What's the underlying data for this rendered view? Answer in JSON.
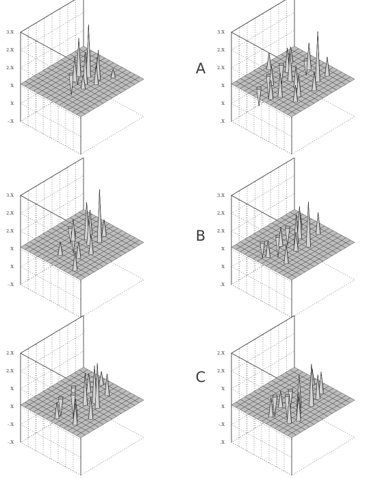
{
  "figure": {
    "rows": [
      {
        "label": "A"
      },
      {
        "label": "B"
      },
      {
        "label": "C"
      }
    ]
  },
  "chart_data": [
    {
      "type": "surface3d",
      "row": "A",
      "column": "left",
      "ztick_labels": [
        "-.X",
        "X",
        "X",
        "2.X",
        "2.X",
        "3.X"
      ],
      "grid": true,
      "peaks": [
        {
          "x": 0.62,
          "y": 0.52,
          "z": 1.0
        },
        {
          "x": 0.5,
          "y": 0.45,
          "z": 0.6
        },
        {
          "x": 0.56,
          "y": 0.62,
          "z": 0.72
        },
        {
          "x": 0.46,
          "y": 0.58,
          "z": 0.45
        },
        {
          "x": 0.66,
          "y": 0.4,
          "z": 0.55
        },
        {
          "x": 0.7,
          "y": 0.62,
          "z": 0.4
        },
        {
          "x": 0.58,
          "y": 0.35,
          "z": 0.35
        },
        {
          "x": 0.42,
          "y": 0.4,
          "z": 0.25
        },
        {
          "x": 0.74,
          "y": 0.5,
          "z": 0.3
        },
        {
          "x": 0.52,
          "y": 0.7,
          "z": -0.4
        },
        {
          "x": 0.64,
          "y": 0.72,
          "z": -0.3
        },
        {
          "x": 0.8,
          "y": 0.3,
          "z": 0.15
        }
      ]
    },
    {
      "type": "surface3d",
      "row": "A",
      "column": "right",
      "ztick_labels": [
        ".X",
        "X",
        "X",
        "2.X",
        "2.X",
        "3.X"
      ],
      "grid": true,
      "peaks": [
        {
          "x": 0.7,
          "y": 0.3,
          "z": 0.95
        },
        {
          "x": 0.2,
          "y": 0.4,
          "z": 0.45
        },
        {
          "x": 0.35,
          "y": 0.25,
          "z": 0.4
        },
        {
          "x": 0.5,
          "y": 0.55,
          "z": 0.55
        },
        {
          "x": 0.6,
          "y": 0.7,
          "z": 0.45
        },
        {
          "x": 0.8,
          "y": 0.55,
          "z": 0.5
        },
        {
          "x": 0.3,
          "y": 0.65,
          "z": 0.35
        },
        {
          "x": 0.45,
          "y": 0.4,
          "z": 0.4
        },
        {
          "x": 0.85,
          "y": 0.3,
          "z": 0.35
        },
        {
          "x": 0.15,
          "y": 0.7,
          "z": -0.35
        },
        {
          "x": 0.4,
          "y": 0.8,
          "z": -0.45
        },
        {
          "x": 0.65,
          "y": 0.85,
          "z": -0.4
        },
        {
          "x": 0.25,
          "y": 0.2,
          "z": 0.3
        },
        {
          "x": 0.55,
          "y": 0.2,
          "z": 0.35
        },
        {
          "x": 0.75,
          "y": 0.8,
          "z": 0.3
        },
        {
          "x": 0.9,
          "y": 0.7,
          "z": -0.3
        },
        {
          "x": 0.1,
          "y": 0.45,
          "z": 0.35
        },
        {
          "x": 0.5,
          "y": 0.9,
          "z": 0.3
        }
      ]
    },
    {
      "type": "surface3d",
      "row": "B",
      "column": "left",
      "ztick_labels": [
        "-.X",
        "X",
        "X",
        "2.X",
        "2.X",
        "3.X"
      ],
      "grid": true,
      "peaks": [
        {
          "x": 0.68,
          "y": 0.4,
          "z": 1.0
        },
        {
          "x": 0.62,
          "y": 0.55,
          "z": 0.7
        },
        {
          "x": 0.56,
          "y": 0.45,
          "z": 0.5
        },
        {
          "x": 0.72,
          "y": 0.6,
          "z": 0.45
        },
        {
          "x": 0.1,
          "y": 0.2,
          "z": 0.35
        },
        {
          "x": 0.3,
          "y": 0.35,
          "z": 0.3
        },
        {
          "x": 0.45,
          "y": 0.3,
          "z": 0.35
        },
        {
          "x": 0.5,
          "y": 0.65,
          "z": 0.4
        },
        {
          "x": 0.6,
          "y": 0.75,
          "z": -0.4
        },
        {
          "x": 0.65,
          "y": 0.85,
          "z": -0.3
        },
        {
          "x": 0.2,
          "y": 0.55,
          "z": 0.25
        },
        {
          "x": 0.8,
          "y": 0.45,
          "z": 0.3
        }
      ]
    },
    {
      "type": "surface3d",
      "row": "B",
      "column": "right",
      "ztick_labels": [
        ".X",
        "X",
        "X",
        "2.X",
        "2.X",
        "3.X"
      ],
      "grid": true,
      "peaks": [
        {
          "x": 0.6,
          "y": 0.35,
          "z": 0.85
        },
        {
          "x": 0.55,
          "y": 0.5,
          "z": 0.55
        },
        {
          "x": 0.65,
          "y": 0.55,
          "z": 0.6
        },
        {
          "x": 0.2,
          "y": 0.3,
          "z": 0.35
        },
        {
          "x": 0.85,
          "y": 0.45,
          "z": 0.4
        },
        {
          "x": 0.4,
          "y": 0.6,
          "z": 0.35
        },
        {
          "x": 0.5,
          "y": 0.75,
          "z": -0.4
        },
        {
          "x": 0.7,
          "y": 0.8,
          "z": -0.35
        },
        {
          "x": 0.3,
          "y": 0.8,
          "z": -0.3
        },
        {
          "x": 0.8,
          "y": 0.7,
          "z": 0.3
        },
        {
          "x": 0.15,
          "y": 0.55,
          "z": 0.3
        },
        {
          "x": 0.45,
          "y": 0.4,
          "z": 0.35
        }
      ]
    },
    {
      "type": "surface3d",
      "row": "C",
      "column": "left",
      "ztick_labels": [
        "-.X",
        "-.X",
        "X",
        "X",
        "2.X",
        "2.X"
      ],
      "grid": true,
      "peaks": [
        {
          "x": 0.55,
          "y": 0.3,
          "z": 0.85
        },
        {
          "x": 0.6,
          "y": 0.4,
          "z": 0.7
        },
        {
          "x": 0.5,
          "y": 0.45,
          "z": 0.6
        },
        {
          "x": 0.15,
          "y": 0.25,
          "z": 0.4
        },
        {
          "x": 0.25,
          "y": 0.35,
          "z": 0.35
        },
        {
          "x": 0.35,
          "y": 0.2,
          "z": 0.4
        },
        {
          "x": 0.8,
          "y": 0.4,
          "z": 0.4
        },
        {
          "x": 0.7,
          "y": 0.6,
          "z": 0.35
        },
        {
          "x": 0.55,
          "y": 0.7,
          "z": -0.45
        },
        {
          "x": 0.4,
          "y": 0.75,
          "z": -0.35
        },
        {
          "x": 0.65,
          "y": 0.8,
          "z": -0.3
        },
        {
          "x": 0.1,
          "y": 0.5,
          "z": 0.3
        },
        {
          "x": 0.9,
          "y": 0.6,
          "z": 0.25
        }
      ]
    },
    {
      "type": "surface3d",
      "row": "C",
      "column": "right",
      "ztick_labels": [
        ".X",
        "-.X",
        "X",
        "X",
        "2.X",
        "2.X"
      ],
      "grid": true,
      "peaks": [
        {
          "x": 0.6,
          "y": 0.3,
          "z": 0.8
        },
        {
          "x": 0.5,
          "y": 0.4,
          "z": 0.6
        },
        {
          "x": 0.2,
          "y": 0.25,
          "z": 0.5
        },
        {
          "x": 0.3,
          "y": 0.2,
          "z": 0.45
        },
        {
          "x": 0.4,
          "y": 0.3,
          "z": 0.4
        },
        {
          "x": 0.75,
          "y": 0.35,
          "z": 0.45
        },
        {
          "x": 0.85,
          "y": 0.4,
          "z": 0.4
        },
        {
          "x": 0.55,
          "y": 0.65,
          "z": -0.45
        },
        {
          "x": 0.45,
          "y": 0.75,
          "z": -0.4
        },
        {
          "x": 0.65,
          "y": 0.7,
          "z": -0.35
        },
        {
          "x": 0.15,
          "y": 0.5,
          "z": 0.35
        },
        {
          "x": 0.9,
          "y": 0.6,
          "z": 0.3
        },
        {
          "x": 0.35,
          "y": 0.55,
          "z": 0.3
        }
      ]
    }
  ]
}
